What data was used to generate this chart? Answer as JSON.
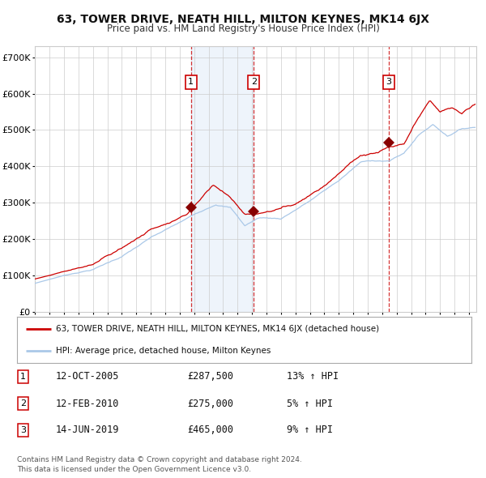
{
  "title": "63, TOWER DRIVE, NEATH HILL, MILTON KEYNES, MK14 6JX",
  "subtitle": "Price paid vs. HM Land Registry's House Price Index (HPI)",
  "title_fontsize": 10,
  "subtitle_fontsize": 8.5,
  "background_color": "#ffffff",
  "plot_background": "#ffffff",
  "grid_color": "#cccccc",
  "hpi_line_color": "#aac8e8",
  "price_line_color": "#cc0000",
  "purchase_marker_color": "#880000",
  "highlight_color": "#ddeeff",
  "purchases": [
    {
      "label": "1",
      "date_num": 2005.78,
      "price": 287500
    },
    {
      "label": "2",
      "date_num": 2010.12,
      "price": 275000
    },
    {
      "label": "3",
      "date_num": 2019.45,
      "price": 465000
    }
  ],
  "ylim": [
    0,
    730000
  ],
  "xlim": [
    1995.0,
    2025.5
  ],
  "ytick_labels": [
    "£0",
    "£100K",
    "£200K",
    "£300K",
    "£400K",
    "£500K",
    "£600K",
    "£700K"
  ],
  "ytick_values": [
    0,
    100000,
    200000,
    300000,
    400000,
    500000,
    600000,
    700000
  ],
  "legend_line1": "63, TOWER DRIVE, NEATH HILL, MILTON KEYNES, MK14 6JX (detached house)",
  "legend_line2": "HPI: Average price, detached house, Milton Keynes",
  "table_rows": [
    {
      "num": "1",
      "date": "12-OCT-2005",
      "price": "£287,500",
      "hpi": "13% ↑ HPI"
    },
    {
      "num": "2",
      "date": "12-FEB-2010",
      "price": "£275,000",
      "hpi": "5% ↑ HPI"
    },
    {
      "num": "3",
      "date": "14-JUN-2019",
      "price": "£465,000",
      "hpi": "9% ↑ HPI"
    }
  ],
  "footnote1": "Contains HM Land Registry data © Crown copyright and database right 2024.",
  "footnote2": "This data is licensed under the Open Government Licence v3.0."
}
